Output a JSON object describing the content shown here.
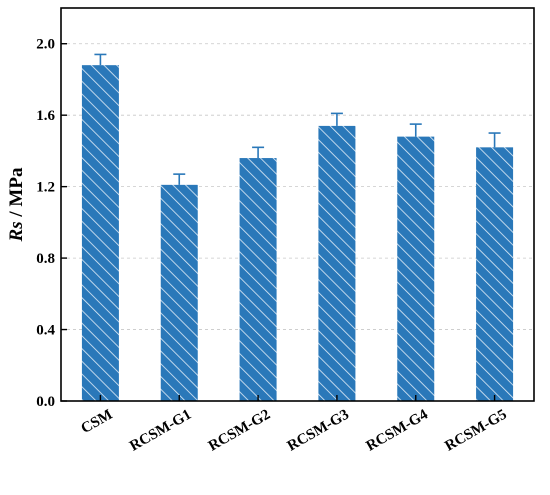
{
  "chart_data": {
    "type": "bar",
    "categories": [
      "CSM",
      "RCSM-G1",
      "RCSM-G2",
      "RCSM-G3",
      "RCSM-G4",
      "RCSM-G5"
    ],
    "values": [
      1.88,
      1.21,
      1.36,
      1.54,
      1.48,
      1.42
    ],
    "errors": [
      0.06,
      0.06,
      0.06,
      0.07,
      0.07,
      0.08
    ],
    "title": "",
    "xlabel": "",
    "ylabel": "Rs / MPa",
    "ylabel_parts": {
      "italic": "Rs",
      "rest": " / MPa"
    },
    "ylim": [
      0,
      2.2
    ],
    "yticks": [
      "0.0",
      "0.4",
      "0.8",
      "1.2",
      "1.6",
      "2.0"
    ],
    "grid": "horizontal dashed",
    "legend": "none",
    "bar_color": "#2a78b9",
    "hatch_color": "#e3eef8",
    "errorbar_color": "#2a78b9",
    "hatch": "diagonal"
  }
}
